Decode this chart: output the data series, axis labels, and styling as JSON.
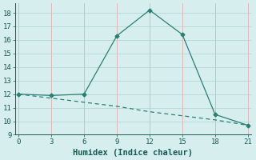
{
  "xlabel": "Humidex (Indice chaleur)",
  "line1_x": [
    0,
    3,
    6,
    9,
    12,
    15,
    18,
    21
  ],
  "line1_y": [
    12,
    11.9,
    12,
    16.3,
    18.2,
    16.4,
    10.5,
    9.7
  ],
  "line2_x": [
    0,
    3,
    6,
    9,
    12,
    15,
    18,
    21
  ],
  "line2_y": [
    12,
    11.7,
    11.4,
    11.1,
    10.7,
    10.4,
    10.1,
    9.7
  ],
  "line_color": "#2a7f74",
  "bg_color": "#d6efee",
  "hgrid_color": "#b8dbd9",
  "vgrid_color": "#e0b8b8",
  "xlim": [
    -0.3,
    21.3
  ],
  "ylim": [
    9,
    18.7
  ],
  "xticks": [
    0,
    3,
    6,
    9,
    12,
    15,
    18,
    21
  ],
  "yticks": [
    9,
    10,
    11,
    12,
    13,
    14,
    15,
    16,
    17,
    18
  ],
  "tick_fontsize": 6.5,
  "xlabel_fontsize": 7.5
}
